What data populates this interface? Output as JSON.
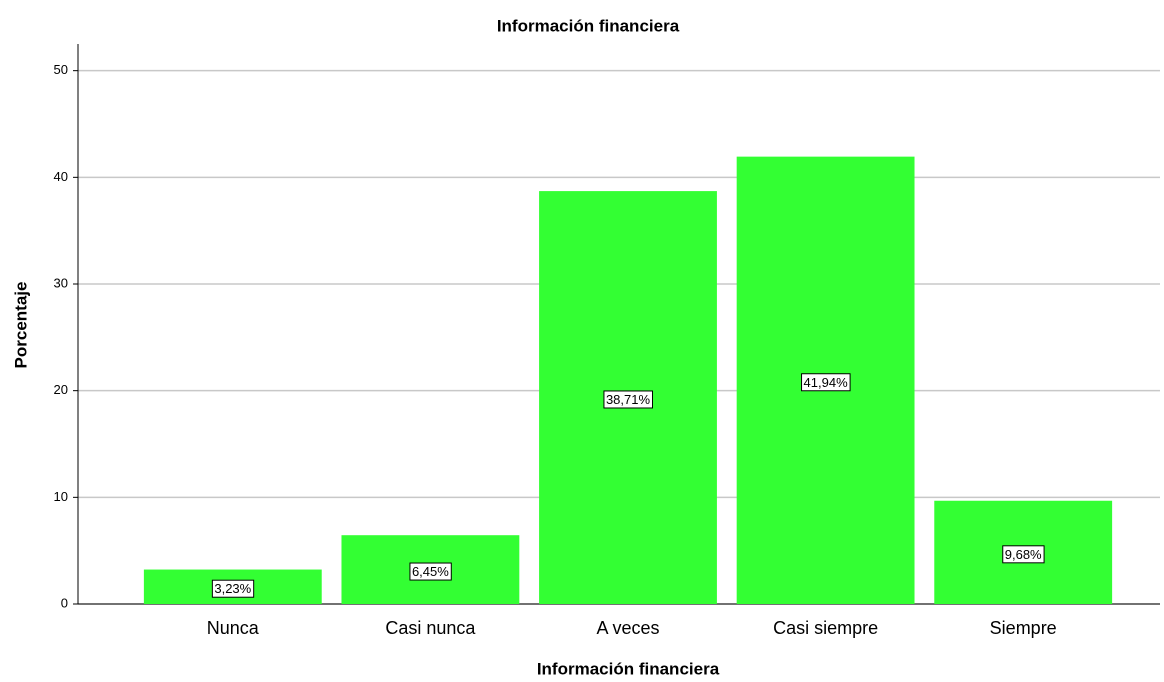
{
  "chart_data": {
    "type": "bar",
    "title": "Información financiera",
    "x_label": "Información financiera",
    "y_label": "Porcentaje",
    "categories": [
      "Nunca",
      "Casi nunca",
      "A veces",
      "Casi siempre",
      "Siempre"
    ],
    "values": [
      3.23,
      6.45,
      38.71,
      41.94,
      9.68
    ],
    "value_labels": [
      "3,23%",
      "6,45%",
      "38,71%",
      "41,94%",
      "9,68%"
    ],
    "color": "#33ff33",
    "ylim": [
      0,
      52.5
    ],
    "yticks": [
      0,
      10,
      20,
      30,
      40,
      50
    ],
    "grid": true
  }
}
